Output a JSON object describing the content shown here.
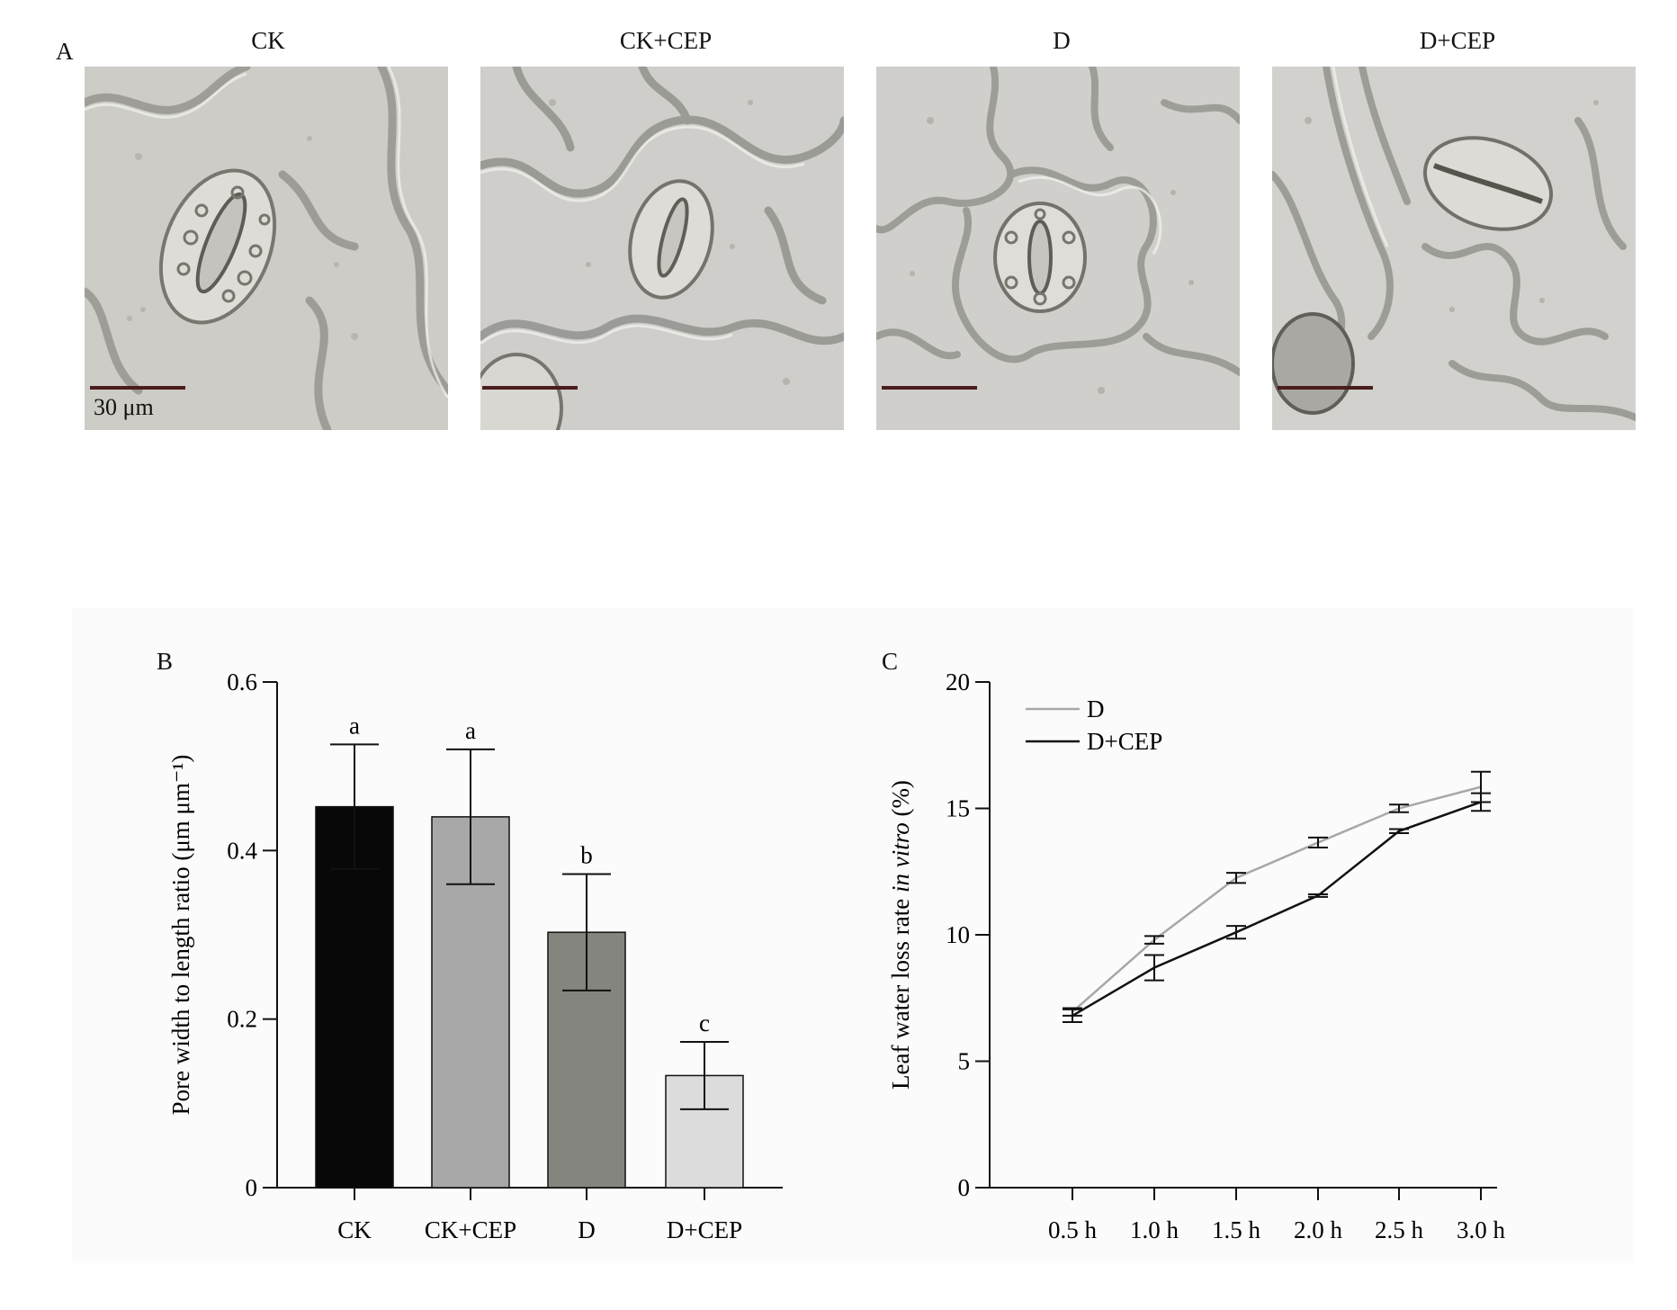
{
  "panels": {
    "a": {
      "letter": "A",
      "columns": [
        "CK",
        "CK+CEP",
        "D",
        "D+CEP"
      ],
      "scale_bar_label": "30 μm"
    },
    "b": {
      "letter": "B"
    },
    "c": {
      "letter": "C"
    }
  },
  "chart_data": [
    {
      "type": "bar",
      "panel": "B",
      "categories": [
        "CK",
        "CK+CEP",
        "D",
        "D+CEP"
      ],
      "values": [
        0.452,
        0.44,
        0.303,
        0.133
      ],
      "errors": [
        0.074,
        0.08,
        0.069,
        0.04
      ],
      "significance": [
        "a",
        "a",
        "b",
        "c"
      ],
      "bar_colors": [
        "#080808",
        "#a8a8a8",
        "#858580",
        "#dcdcdc"
      ],
      "ylabel": "Pore width to length ratio (μm μm⁻¹)",
      "ylim": [
        0,
        0.6
      ],
      "yticks": [
        0,
        0.2,
        0.4,
        0.6
      ],
      "ytick_labels": [
        "0",
        "0.2",
        "0.4",
        "0.6"
      ],
      "grid": false
    },
    {
      "type": "line",
      "panel": "C",
      "x": [
        "0.5 h",
        "1.0 h",
        "1.5 h",
        "2.0 h",
        "2.5 h",
        "3.0 h"
      ],
      "series": [
        {
          "name": "D",
          "color": "#a8a8a8",
          "values": [
            6.95,
            9.8,
            12.25,
            13.65,
            15.0,
            15.85
          ],
          "errors": [
            0.15,
            0.15,
            0.2,
            0.2,
            0.15,
            0.6
          ]
        },
        {
          "name": "D+CEP",
          "color": "#111111",
          "values": [
            6.8,
            8.7,
            10.1,
            11.55,
            14.1,
            15.25
          ],
          "errors": [
            0.25,
            0.5,
            0.25,
            0.05,
            0.08,
            0.35
          ]
        }
      ],
      "ylabel_prefix": "Leaf water loss rate ",
      "ylabel_italic": "in vitro",
      "ylabel_suffix": " (%)",
      "ylim": [
        0,
        20
      ],
      "yticks": [
        0,
        5,
        10,
        15,
        20
      ],
      "ytick_labels": [
        "0",
        "5",
        "10",
        "15",
        "20"
      ],
      "legend_position": "top-left",
      "grid": false
    }
  ]
}
